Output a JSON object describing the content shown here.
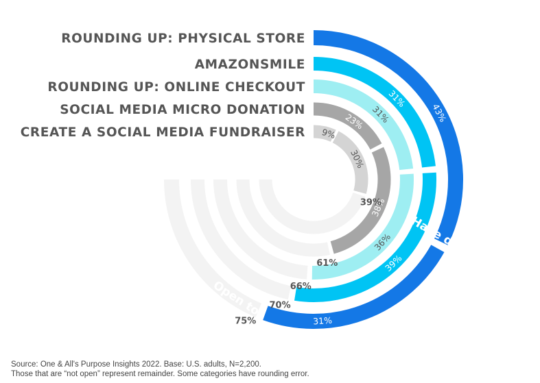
{
  "chart_data": {
    "type": "radial-bar",
    "categories": [
      "ROUNDING UP: PHYSICAL STORE",
      "AMAZONSMILE",
      "ROUNDING UP: ONLINE CHECKOUT",
      "SOCIAL MEDIA MICRO DONATION",
      "CREATE A SOCIAL MEDIA FUNDRAISER"
    ],
    "series": [
      {
        "name": "Have done",
        "values": [
          43,
          31,
          31,
          23,
          9
        ]
      },
      {
        "name": "Open to",
        "values": [
          31,
          39,
          36,
          38,
          30
        ]
      }
    ],
    "not_open": [
      26,
      30,
      33,
      39,
      61
    ],
    "totals_labels": [
      "75%",
      "70%",
      "66%",
      "61%",
      "39%"
    ],
    "colors": {
      "have_done": [
        "#1478e6",
        "#00c4f4",
        "#9eeef2",
        "#a6a6a6",
        "#d4d4d4"
      ],
      "open_to": [
        "#1478e6",
        "#00c4f4",
        "#9eeef2",
        "#a6a6a6",
        "#d4d4d4"
      ],
      "not_open": "#f3f3f3",
      "have_done_text": [
        "#ffffff",
        "#ffffff",
        "#555555",
        "#ffffff",
        "#555555"
      ],
      "open_to_text": [
        "#ffffff",
        "#ffffff",
        "#555555",
        "#ffffff",
        "#555555"
      ]
    }
  },
  "footer": {
    "line1": "Source: One & All's Purpose Insights 2022. Base: U.S. adults, N=2,200.",
    "line2": "Those that are “not open” represent remainder. Some categories have rounding error."
  }
}
